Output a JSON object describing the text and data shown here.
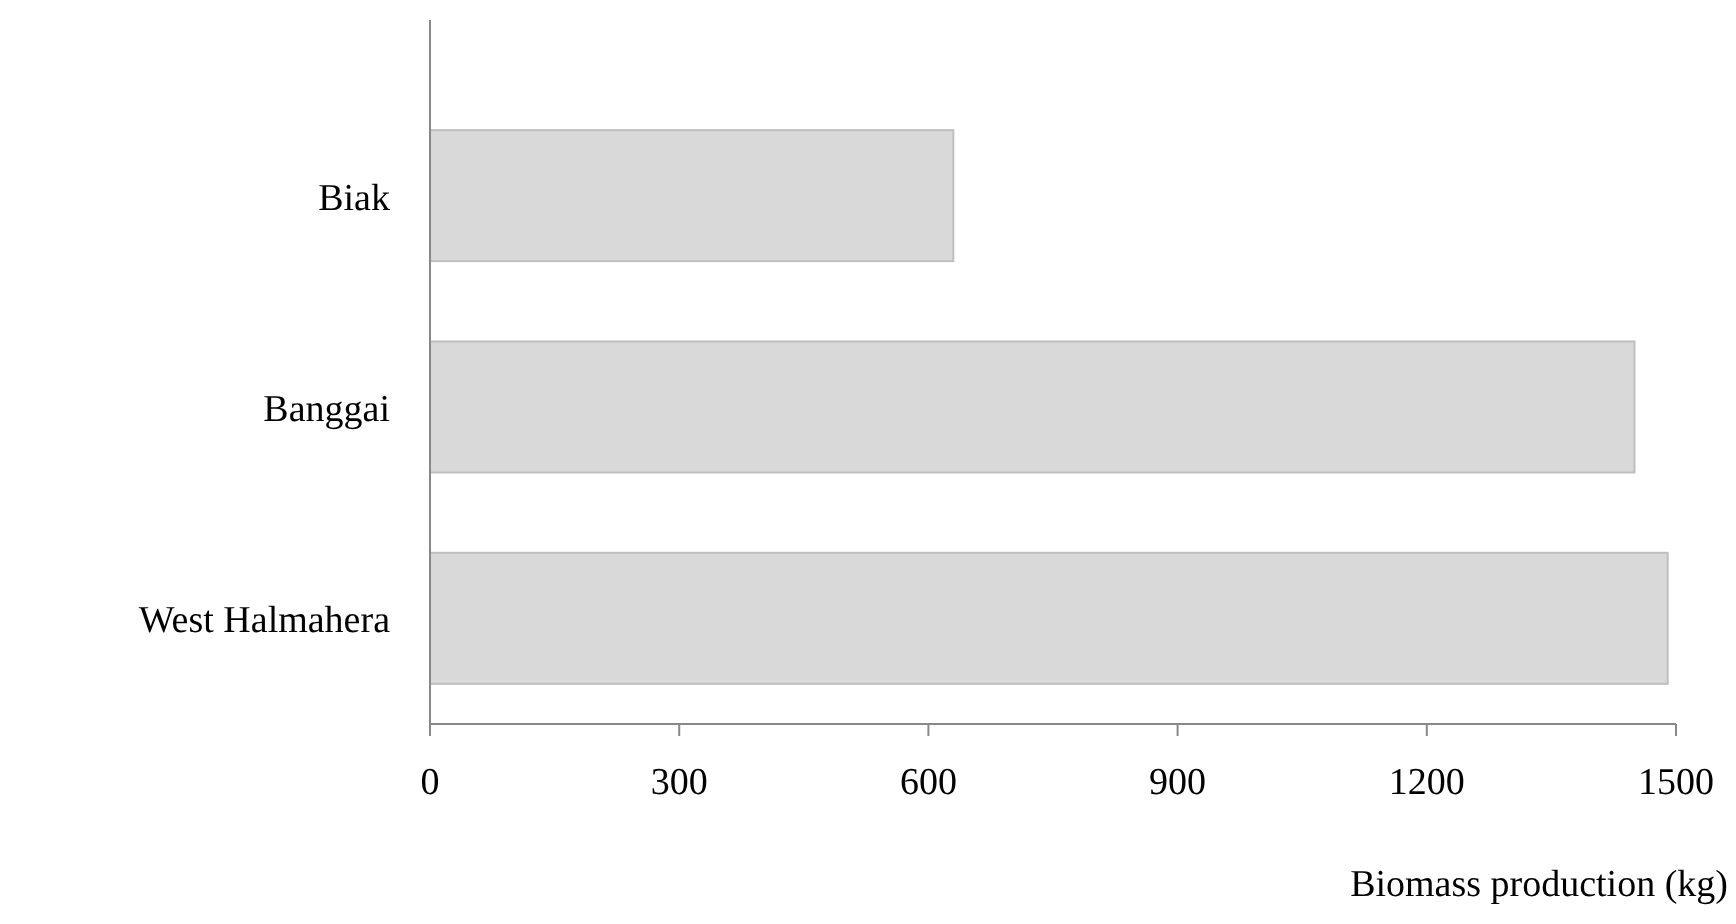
{
  "chart_data": {
    "type": "bar",
    "orientation": "horizontal",
    "xlabel": "Biomass production (kg)",
    "categories": [
      "Biak",
      "Banggai",
      "West Halmahera"
    ],
    "values": [
      630,
      1450,
      1490
    ],
    "color": "#d9d9d9",
    "xlim": [
      0,
      1500
    ],
    "xticks": [
      0,
      300,
      600,
      900,
      1200,
      1500
    ],
    "grid": false
  }
}
